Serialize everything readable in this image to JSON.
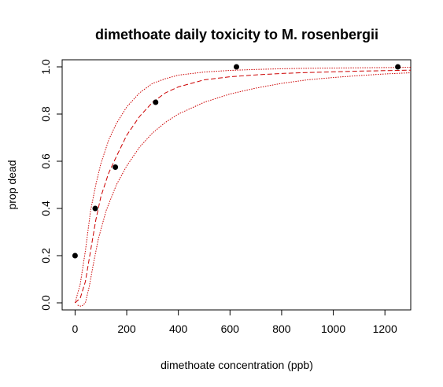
{
  "chart_data": {
    "type": "scatter",
    "title": "dimethoate daily toxicity to M. rosenbergii",
    "xlabel": "dimethoate concentration (ppb)",
    "ylabel": "prop dead",
    "xlim": [
      -50,
      1300
    ],
    "ylim": [
      -0.03,
      1.03
    ],
    "x_ticks": [
      0,
      200,
      400,
      600,
      800,
      1000,
      1200
    ],
    "y_ticks": [
      0.0,
      0.2,
      0.4,
      0.6,
      0.8,
      1.0
    ],
    "x_tick_labels": [
      "0",
      "200",
      "400",
      "600",
      "800",
      "1000",
      "1200"
    ],
    "y_tick_labels": [
      "0.0",
      "0.2",
      "0.4",
      "0.6",
      "0.8",
      "1.0"
    ],
    "grid": false,
    "points": {
      "x": [
        0,
        78,
        156,
        312,
        625,
        1250
      ],
      "y": [
        0.2,
        0.4,
        0.575,
        0.85,
        1.0,
        1.0
      ],
      "color": "#000000"
    },
    "curves": [
      {
        "style": "dashed",
        "color": "#cc0000",
        "x": [
          0,
          20,
          40,
          60,
          80,
          100,
          130,
          160,
          200,
          250,
          300,
          350,
          400,
          500,
          600,
          700,
          800,
          900,
          1000,
          1100,
          1200,
          1300
        ],
        "y": [
          0.0,
          0.02,
          0.09,
          0.22,
          0.35,
          0.45,
          0.55,
          0.62,
          0.71,
          0.79,
          0.85,
          0.89,
          0.915,
          0.945,
          0.958,
          0.966,
          0.972,
          0.976,
          0.979,
          0.982,
          0.984,
          0.986
        ]
      },
      {
        "style": "dotted",
        "color": "#cc0000",
        "x": [
          0,
          20,
          40,
          60,
          80,
          100,
          130,
          160,
          200,
          250,
          300,
          350,
          400,
          500,
          600,
          700,
          800,
          900,
          1000,
          1100,
          1200,
          1300
        ],
        "y": [
          0.0,
          0.08,
          0.22,
          0.39,
          0.5,
          0.59,
          0.69,
          0.76,
          0.83,
          0.89,
          0.93,
          0.95,
          0.965,
          0.978,
          0.985,
          0.989,
          0.992,
          0.994,
          0.995,
          0.996,
          0.997,
          0.998
        ]
      },
      {
        "style": "dotted",
        "color": "#cc0000",
        "x": [
          10,
          25,
          40,
          55,
          70,
          90,
          120,
          160,
          200,
          250,
          300,
          350,
          400,
          500,
          600,
          700,
          800,
          900,
          1000,
          1100,
          1200,
          1300
        ],
        "y": [
          -0.01,
          -0.015,
          0.0,
          0.07,
          0.16,
          0.27,
          0.39,
          0.5,
          0.58,
          0.66,
          0.72,
          0.765,
          0.8,
          0.85,
          0.885,
          0.91,
          0.93,
          0.945,
          0.955,
          0.963,
          0.97,
          0.975
        ]
      }
    ]
  }
}
